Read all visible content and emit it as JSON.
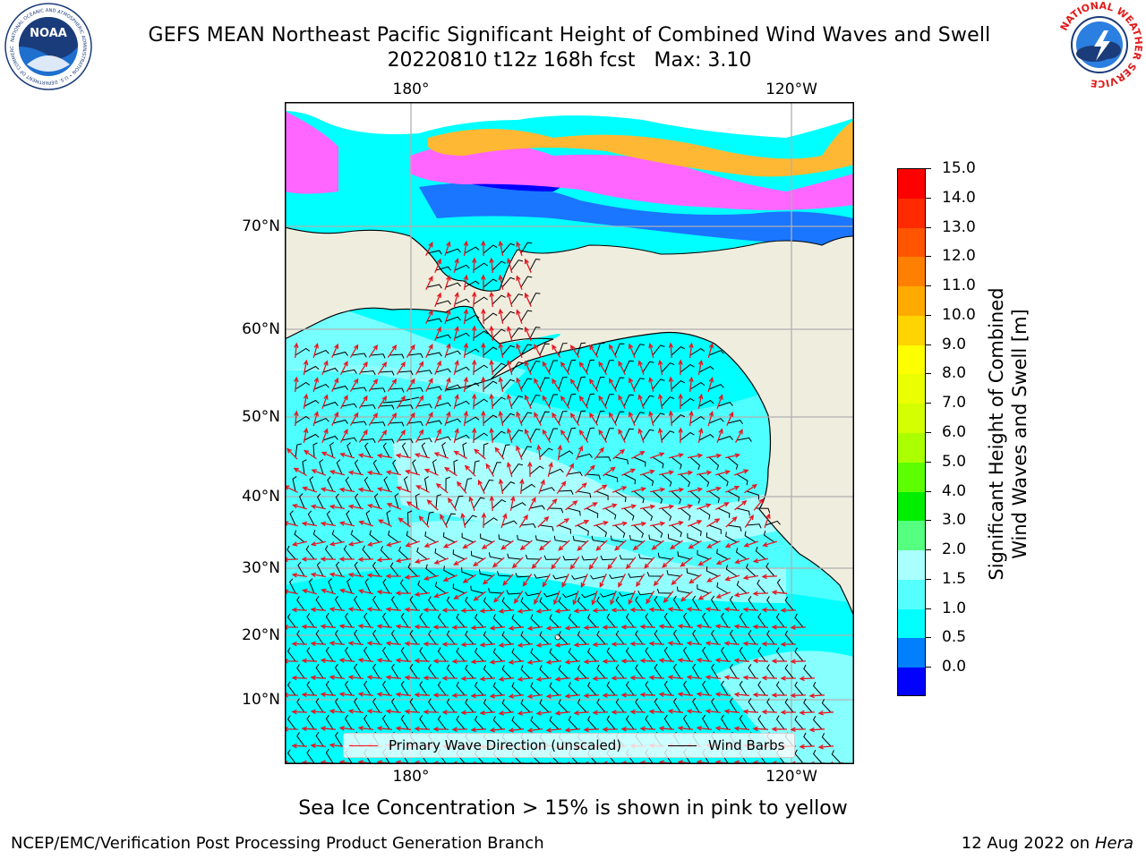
{
  "header": {
    "title": "GEFS MEAN Northeast Pacific Significant Height of Combined Wind Waves and Swell",
    "subtitle_date": "20220810 t12z 168h fcst",
    "subtitle_max": "Max: 3.10"
  },
  "logos": {
    "noaa": {
      "icon": "noaa-logo",
      "text": "NOAA",
      "ring_text": "NATIONAL OCEANIC AND ATMOSPHERIC ADMINISTRATION • U.S. DEPARTMENT OF COMMERCE"
    },
    "nws": {
      "icon": "nws-logo",
      "ring_text": "NATIONAL WEATHER SERVICE"
    }
  },
  "map": {
    "lon_labels_top": [
      "180°",
      "120°W"
    ],
    "lon_labels_bottom": [
      "180°",
      "120°W"
    ],
    "lat_labels": [
      "70°N",
      "60°N",
      "50°N",
      "40°N",
      "30°N",
      "20°N",
      "10°N"
    ],
    "colors": {
      "land": "#efedde",
      "ocean_default": "#00ffff",
      "ice_pink": "#ff66ff",
      "ice_orange": "#ffb833",
      "deep_blue": "#0000ff",
      "mid_blue": "#1a75ff",
      "wave_arrow": "#e8141e",
      "wind_barb": "#000000",
      "grid": "#b0b0b0"
    }
  },
  "legend": {
    "wave_label": "Primary Wave Direction (unscaled)",
    "wind_label": "Wind Barbs"
  },
  "colorbar": {
    "title_line1": "Significant Height of Combined",
    "title_line2": "Wind Waves and Swell [m]",
    "tick_labels": [
      "15.0",
      "14.0",
      "13.0",
      "12.0",
      "11.0",
      "10.0",
      "9.0",
      "8.0",
      "7.0",
      "6.0",
      "5.0",
      "4.0",
      "3.0",
      "2.0",
      "1.5",
      "1.0",
      "0.5",
      "0.0"
    ],
    "segment_colors_top_to_bottom": [
      "#ff0000",
      "#ff2a00",
      "#ff5500",
      "#ff8000",
      "#ffaa00",
      "#ffd400",
      "#ffff00",
      "#eaff00",
      "#d4ff00",
      "#aaff00",
      "#5dff00",
      "#00ee00",
      "#55ff80",
      "#aaffff",
      "#55ffff",
      "#00ffff",
      "#0080ff",
      "#0000ff"
    ]
  },
  "notes": {
    "sea_ice": "Sea Ice Concentration > 15% is shown in pink to yellow",
    "footer_left": "NCEP/EMC/Verification Post Processing Product Generation Branch",
    "footer_date": "12 Aug 2022 on",
    "footer_host": "Hera"
  }
}
